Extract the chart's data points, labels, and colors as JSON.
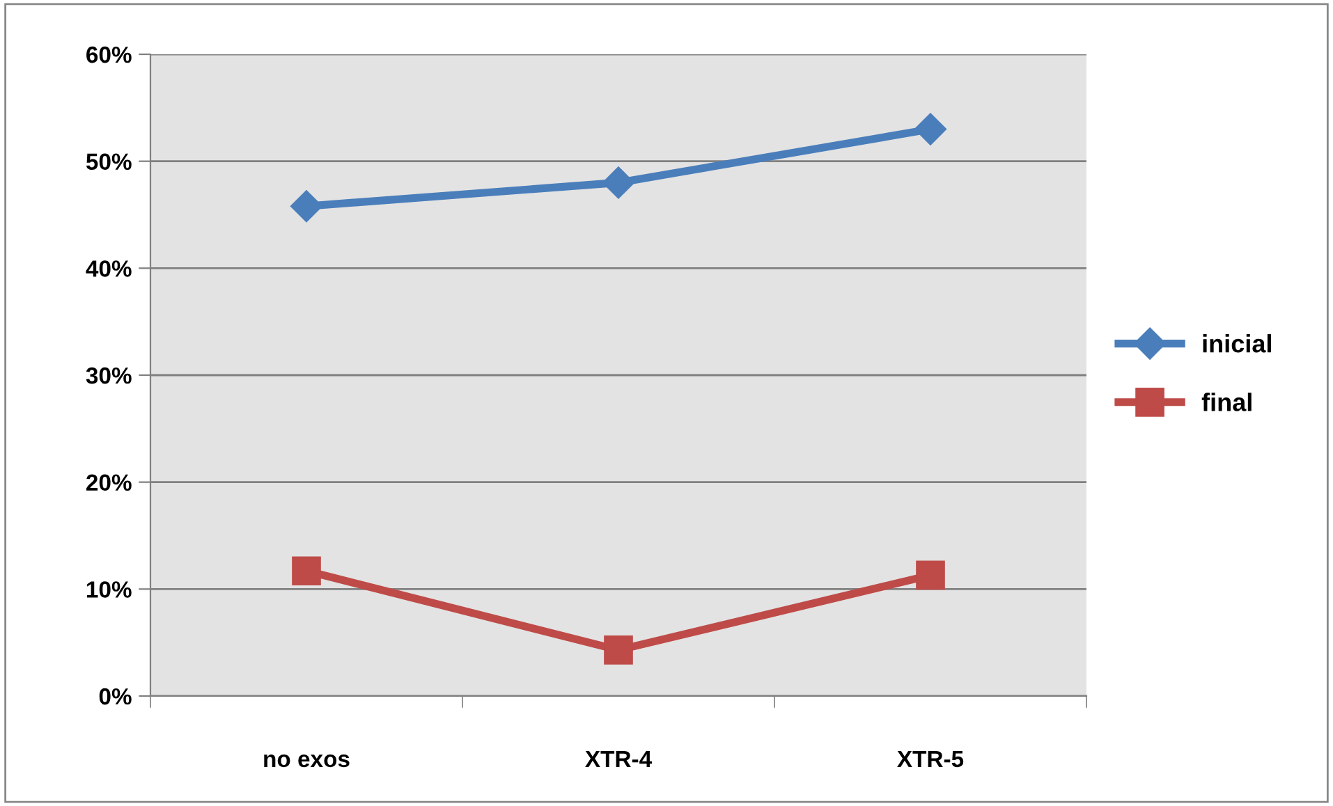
{
  "chart_data": {
    "type": "line",
    "categories": [
      "no exos",
      "XTR-4",
      "XTR-5"
    ],
    "series": [
      {
        "name": "inicial",
        "color": "#4a7ebb",
        "values": [
          45.8,
          48,
          53
        ],
        "marker": "diamond"
      },
      {
        "name": "final",
        "color": "#be4b48",
        "values": [
          11.7,
          4.3,
          11.3
        ],
        "marker": "square"
      }
    ],
    "ylim": [
      0,
      60
    ],
    "yticks": [
      {
        "value": 0,
        "label": "0%"
      },
      {
        "value": 10,
        "label": "10%"
      },
      {
        "value": 20,
        "label": "20%"
      },
      {
        "value": 30,
        "label": "30%"
      },
      {
        "value": 40,
        "label": "40%"
      },
      {
        "value": 50,
        "label": "50%"
      },
      {
        "value": 60,
        "label": "60%"
      }
    ],
    "grid": "y",
    "legend": "right",
    "line_style": "solid"
  }
}
